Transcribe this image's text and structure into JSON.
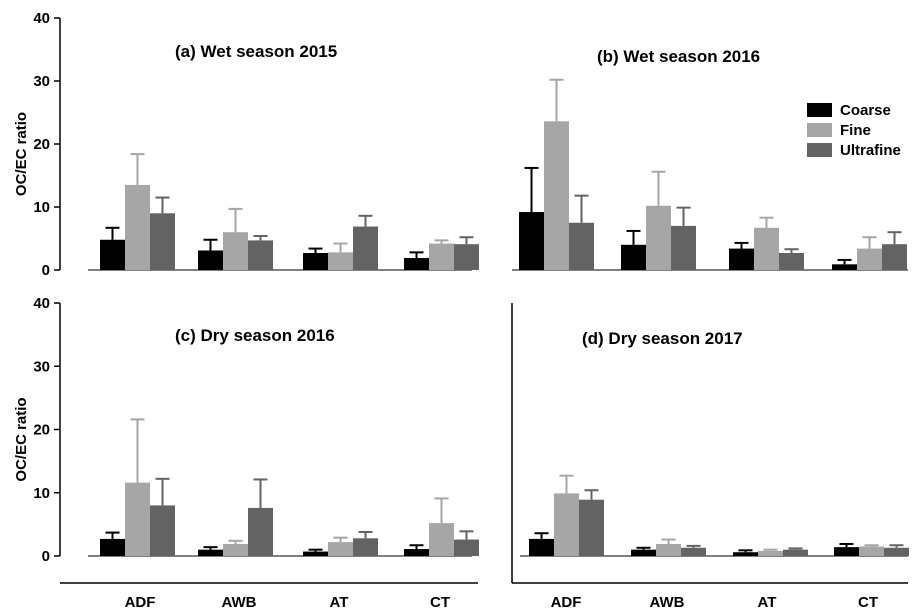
{
  "colors": {
    "Coarse": "#000000",
    "Fine": "#a6a6a6",
    "Ultrafine": "#636363"
  },
  "legend": [
    "Coarse",
    "Fine",
    "Ultrafine"
  ],
  "chart_data": [
    {
      "type": "bar",
      "title": "(a) Wet season 2015",
      "ylabel": "OC/EC ratio",
      "ylim": [
        0,
        40
      ],
      "yticks": [
        0,
        10,
        20,
        30,
        40
      ],
      "categories": [
        "ADF",
        "AWB",
        "AT",
        "CT"
      ],
      "series": [
        {
          "name": "Coarse",
          "values": [
            4.8,
            3.1,
            2.7,
            1.9
          ],
          "error": [
            1.9,
            1.7,
            0.7,
            0.9
          ]
        },
        {
          "name": "Fine",
          "values": [
            13.5,
            6.0,
            2.8,
            4.2
          ],
          "error": [
            4.9,
            3.7,
            1.4,
            0.5
          ]
        },
        {
          "name": "Ultrafine",
          "values": [
            9.0,
            4.7,
            6.9,
            4.1
          ],
          "error": [
            2.5,
            0.7,
            1.7,
            1.1
          ]
        }
      ]
    },
    {
      "type": "bar",
      "title": "(b) Wet season 2016",
      "ylim": [
        0,
        40
      ],
      "categories": [
        "ADF",
        "AWB",
        "AT",
        "CT"
      ],
      "series": [
        {
          "name": "Coarse",
          "values": [
            9.2,
            4.0,
            3.4,
            0.9
          ],
          "error": [
            7.0,
            2.2,
            0.9,
            0.7
          ]
        },
        {
          "name": "Fine",
          "values": [
            23.6,
            10.2,
            6.7,
            3.4
          ],
          "error": [
            6.6,
            5.4,
            1.6,
            1.8
          ]
        },
        {
          "name": "Ultrafine",
          "values": [
            7.5,
            7.0,
            2.7,
            4.1
          ],
          "error": [
            4.3,
            2.9,
            0.6,
            1.9
          ]
        }
      ]
    },
    {
      "type": "bar",
      "title": "(c) Dry season 2016",
      "ylabel": "OC/EC ratio",
      "ylim": [
        0,
        40
      ],
      "yticks": [
        0,
        10,
        20,
        30,
        40
      ],
      "categories": [
        "ADF",
        "AWB",
        "AT",
        "CT"
      ],
      "series": [
        {
          "name": "Coarse",
          "values": [
            2.7,
            1.0,
            0.7,
            1.1
          ],
          "error": [
            1.0,
            0.4,
            0.3,
            0.6
          ]
        },
        {
          "name": "Fine",
          "values": [
            11.6,
            1.9,
            2.2,
            5.2
          ],
          "error": [
            10.0,
            0.5,
            0.7,
            3.9
          ]
        },
        {
          "name": "Ultrafine",
          "values": [
            8.0,
            7.6,
            2.8,
            2.6
          ],
          "error": [
            4.2,
            4.5,
            1.0,
            1.3
          ]
        }
      ]
    },
    {
      "type": "bar",
      "title": "(d) Dry season 2017",
      "ylim": [
        0,
        40
      ],
      "categories": [
        "ADF",
        "AWB",
        "AT",
        "CT"
      ],
      "series": [
        {
          "name": "Coarse",
          "values": [
            2.7,
            1.0,
            0.6,
            1.4
          ],
          "error": [
            0.9,
            0.3,
            0.3,
            0.5
          ]
        },
        {
          "name": "Fine",
          "values": [
            9.9,
            1.9,
            0.8,
            1.5
          ],
          "error": [
            2.8,
            0.7,
            0.2,
            0.2
          ]
        },
        {
          "name": "Ultrafine",
          "values": [
            8.9,
            1.3,
            1.0,
            1.3
          ],
          "error": [
            1.5,
            0.3,
            0.2,
            0.4
          ]
        }
      ]
    }
  ]
}
